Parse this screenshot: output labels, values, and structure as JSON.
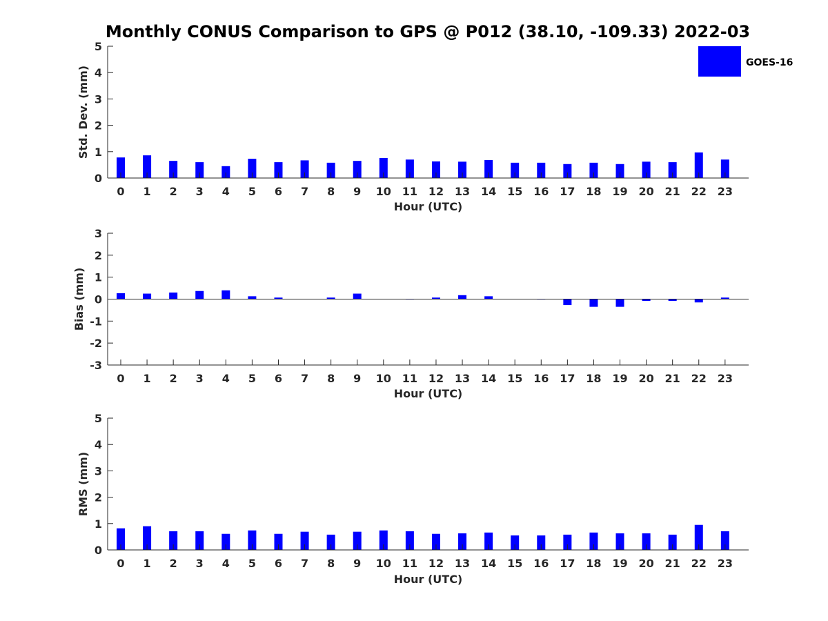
{
  "figure": {
    "title": "Monthly CONUS Comparison to GPS @ P012 (38.10, -109.33) 2022-03",
    "legend": {
      "label": "GOES-16",
      "color": "#0000ff",
      "placement": "top-right"
    }
  },
  "chart_data": [
    {
      "type": "bar",
      "title": "Monthly CONUS Comparison to GPS @ P012 (38.10, -109.33) 2022-03",
      "xlabel": "Hour (UTC)",
      "ylabel": "Std. Dev. (mm)",
      "ylim": [
        0,
        5
      ],
      "yticks": [
        0,
        1,
        2,
        3,
        4,
        5
      ],
      "categories": [
        "0",
        "1",
        "2",
        "3",
        "4",
        "5",
        "6",
        "7",
        "8",
        "9",
        "10",
        "11",
        "12",
        "13",
        "14",
        "15",
        "16",
        "17",
        "18",
        "19",
        "20",
        "21",
        "22",
        "23"
      ],
      "series": [
        {
          "name": "GOES-16",
          "color": "#0000ff",
          "values": [
            0.78,
            0.86,
            0.65,
            0.6,
            0.45,
            0.73,
            0.6,
            0.67,
            0.58,
            0.65,
            0.76,
            0.7,
            0.63,
            0.62,
            0.68,
            0.58,
            0.58,
            0.53,
            0.58,
            0.53,
            0.62,
            0.6,
            0.97,
            0.7
          ]
        }
      ],
      "grid": false
    },
    {
      "type": "bar",
      "xlabel": "Hour (UTC)",
      "ylabel": "Bias (mm)",
      "ylim": [
        -3,
        3
      ],
      "yticks": [
        -3,
        -2,
        -1,
        0,
        1,
        2,
        3
      ],
      "categories": [
        "0",
        "1",
        "2",
        "3",
        "4",
        "5",
        "6",
        "7",
        "8",
        "9",
        "10",
        "11",
        "12",
        "13",
        "14",
        "15",
        "16",
        "17",
        "18",
        "19",
        "20",
        "21",
        "22",
        "23"
      ],
      "series": [
        {
          "name": "GOES-16",
          "color": "#0000ff",
          "values": [
            0.27,
            0.25,
            0.3,
            0.37,
            0.4,
            0.13,
            0.07,
            0.0,
            0.07,
            0.25,
            0.0,
            -0.02,
            0.07,
            0.18,
            0.13,
            0.0,
            -0.02,
            -0.27,
            -0.35,
            -0.35,
            -0.08,
            -0.08,
            -0.15,
            0.07
          ]
        }
      ],
      "grid": false
    },
    {
      "type": "bar",
      "xlabel": "Hour (UTC)",
      "ylabel": "RMS (mm)",
      "ylim": [
        0,
        5
      ],
      "yticks": [
        0,
        1,
        2,
        3,
        4,
        5
      ],
      "categories": [
        "0",
        "1",
        "2",
        "3",
        "4",
        "5",
        "6",
        "7",
        "8",
        "9",
        "10",
        "11",
        "12",
        "13",
        "14",
        "15",
        "16",
        "17",
        "18",
        "19",
        "20",
        "21",
        "22",
        "23"
      ],
      "series": [
        {
          "name": "GOES-16",
          "color": "#0000ff",
          "values": [
            0.82,
            0.9,
            0.71,
            0.71,
            0.61,
            0.74,
            0.61,
            0.69,
            0.58,
            0.69,
            0.74,
            0.71,
            0.61,
            0.63,
            0.66,
            0.55,
            0.55,
            0.58,
            0.66,
            0.63,
            0.63,
            0.58,
            0.95,
            0.71
          ]
        }
      ],
      "grid": false
    }
  ]
}
